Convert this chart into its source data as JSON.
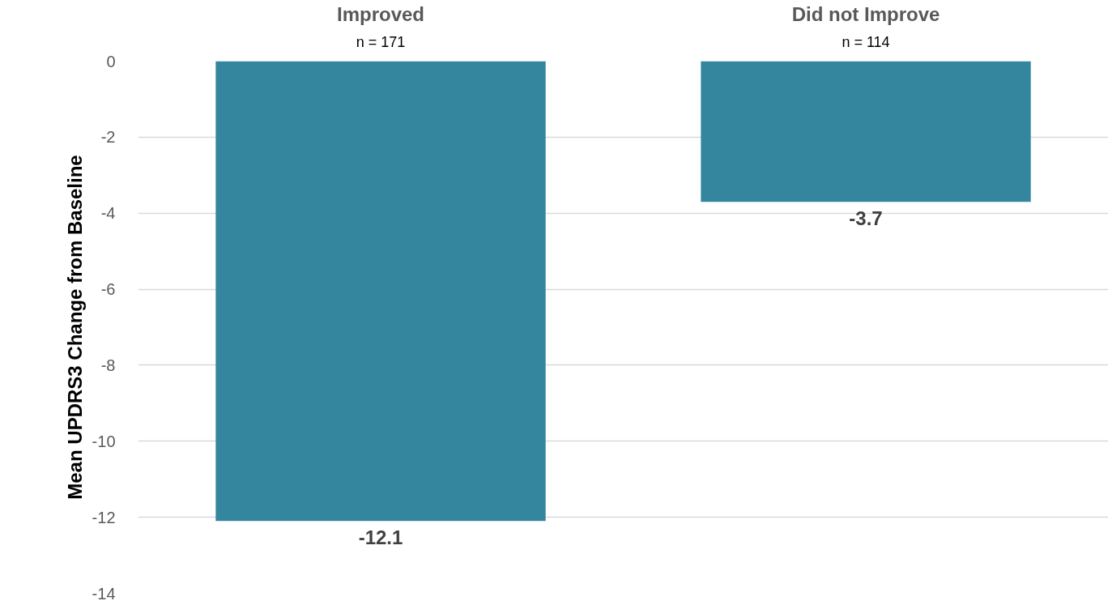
{
  "chart_data": {
    "type": "bar",
    "ylabel": "Mean UPDRS3 Change from Baseline",
    "categories": [
      "Improved",
      "Did not Improve"
    ],
    "values": [
      -12.1,
      -3.7
    ],
    "color": "#33869e",
    "ylim": [
      -14,
      0
    ],
    "yticks": [
      0,
      -2,
      -4,
      -6,
      -8,
      -10,
      -12,
      -14
    ],
    "grid": "y",
    "data_labels": true,
    "annotations": [
      "n = 171",
      "n = 114"
    ]
  }
}
